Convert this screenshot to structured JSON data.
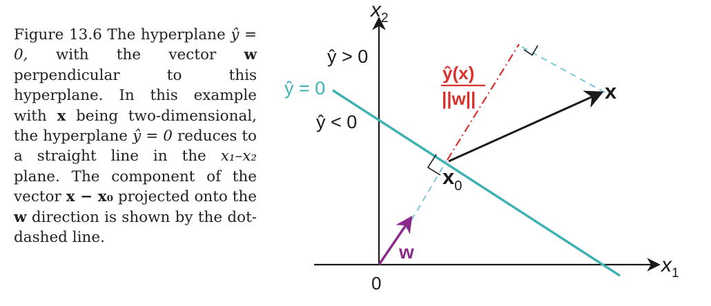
{
  "caption": {
    "label": "Figure 13.6",
    "p1": "The hyperplane",
    "yhat_eq_0_a": "ŷ = 0,",
    "p2": "with the vector",
    "w1": "w",
    "p3": "perpendicular to this hyperplane. In this example with",
    "x1": "x",
    "p4": "being two-dimensional, the hyperplane",
    "yhat_eq_0_b": "ŷ = 0",
    "p5": "reduces to a straight line in the",
    "x1x2": "x₁–x₂",
    "p6": "plane. The component of the vector",
    "x_minus_x0": "x − x₀",
    "p7": "projected onto the",
    "w2": "w",
    "p8": "direction is shown by the dot-dashed line."
  },
  "figure": {
    "axis_x_label": "x",
    "axis_x_sub": "1",
    "axis_y_label": "x",
    "axis_y_sub": "2",
    "origin_label": "0",
    "region_positive": "ŷ > 0",
    "region_negative": "ŷ < 0",
    "hyperplane_label": "ŷ = 0",
    "point_x_label": "x",
    "point_x0_label": "x",
    "point_x0_sub": "0",
    "vector_w_label": "w",
    "distance_numerator": "ŷ(x)",
    "distance_denominator": "||w||",
    "colors": {
      "hyperplane": "#3fb1b3",
      "vector_w": "#8b2a8b",
      "distance": "#d9312d",
      "projection": "#7ec8d9",
      "axes": "#1a1a1a"
    }
  }
}
